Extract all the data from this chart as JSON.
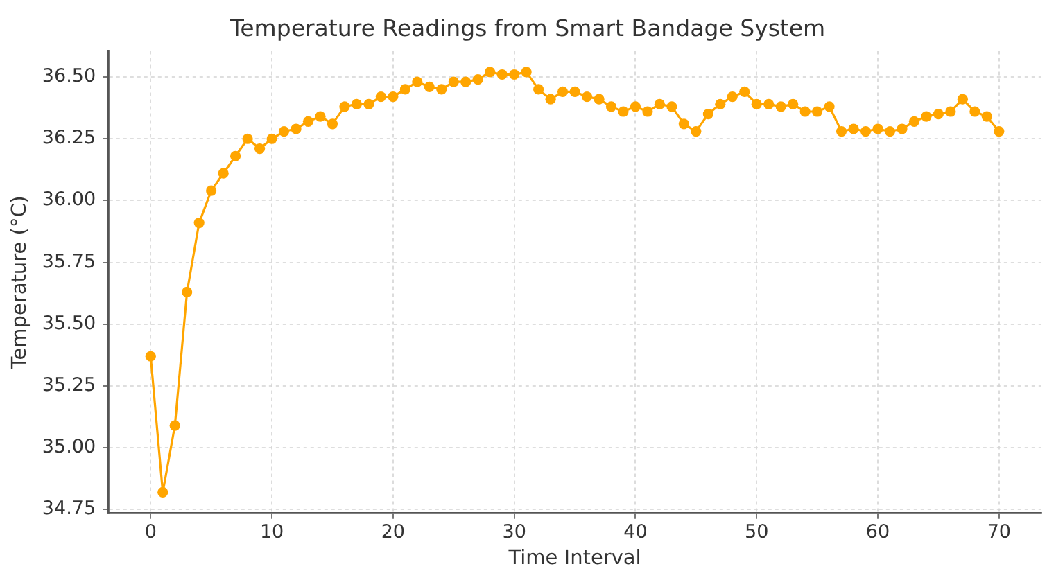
{
  "chart_data": {
    "type": "line",
    "title": "Temperature Readings from Smart Bandage System",
    "xlabel": "Time Interval",
    "ylabel": "Temperature (°C)",
    "x": [
      0,
      1,
      2,
      3,
      4,
      5,
      6,
      7,
      8,
      9,
      10,
      11,
      12,
      13,
      14,
      15,
      16,
      17,
      18,
      19,
      20,
      21,
      22,
      23,
      24,
      25,
      26,
      27,
      28,
      29,
      30,
      31,
      32,
      33,
      34,
      35,
      36,
      37,
      38,
      39,
      40,
      41,
      42,
      43,
      44,
      45,
      46,
      47,
      48,
      49,
      50,
      51,
      52,
      53,
      54,
      55,
      56,
      57,
      58,
      59,
      60,
      61,
      62,
      63,
      64,
      65,
      66,
      67,
      68,
      69,
      70
    ],
    "series": [
      {
        "color": "#ffa500",
        "values": [
          35.37,
          34.82,
          35.09,
          35.63,
          35.91,
          36.04,
          36.11,
          36.18,
          36.25,
          36.21,
          36.25,
          36.28,
          36.29,
          36.32,
          36.34,
          36.31,
          36.38,
          36.39,
          36.39,
          36.42,
          36.42,
          36.45,
          36.48,
          36.46,
          36.45,
          36.48,
          36.48,
          36.49,
          36.52,
          36.51,
          36.51,
          36.52,
          36.45,
          36.41,
          36.44,
          36.44,
          36.42,
          36.41,
          36.38,
          36.36,
          36.38,
          36.36,
          36.39,
          36.38,
          36.31,
          36.28,
          36.35,
          36.39,
          36.42,
          36.44,
          36.39,
          36.39,
          36.38,
          36.39,
          36.36,
          36.36,
          36.38,
          36.28,
          36.29,
          36.28,
          36.29,
          36.28,
          36.29,
          36.32,
          36.34,
          36.35,
          36.36,
          36.41,
          36.36,
          36.34,
          36.28
        ]
      }
    ],
    "xlim": [
      -3.5,
      73.5
    ],
    "ylim": [
      34.735,
      36.605
    ],
    "xticks": [
      0,
      10,
      20,
      30,
      40,
      50,
      60,
      70
    ],
    "yticks": [
      34.75,
      {
        "value": 35,
        "label": "35.00"
      },
      35.25,
      {
        "value": 35.5,
        "label": "35.50"
      },
      35.75,
      {
        "value": 36,
        "label": "36.00"
      },
      36.25,
      {
        "value": 36.5,
        "label": "36.50"
      }
    ],
    "grid": true,
    "marker": "circle",
    "line_style": "solid"
  }
}
